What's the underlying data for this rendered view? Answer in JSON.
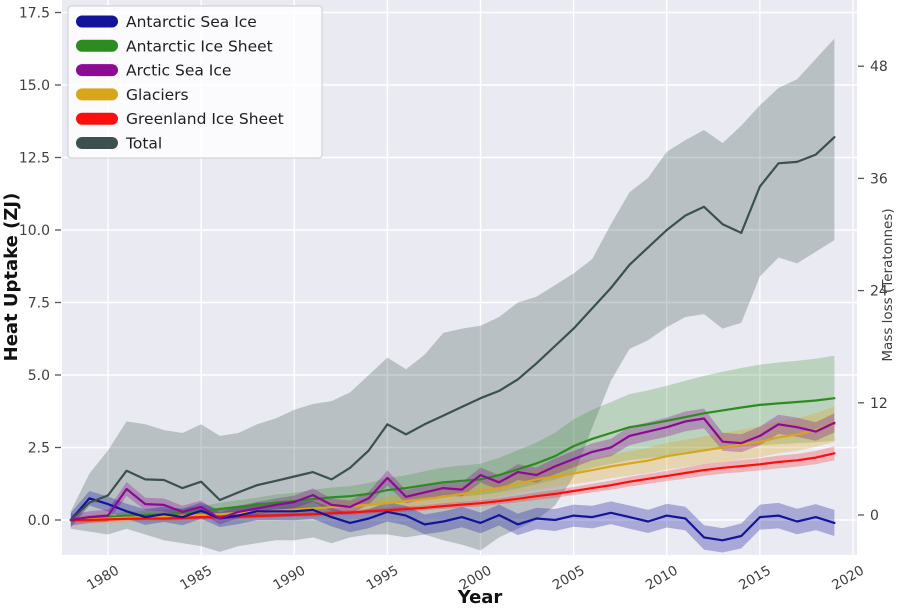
{
  "chart_data": {
    "type": "line",
    "title": "",
    "xlabel": "Year",
    "ylabel_left": "Heat Uptake (ZJ)",
    "ylabel_right": "Mass loss (Teratonnes)",
    "grid": true,
    "legend_position": "upper left",
    "plot_background": "#EAEAF2",
    "gridline_color": "#FFFFFF",
    "tick_label_color": "#3F3F3F",
    "axis_label_color": "#111111",
    "xlim": [
      1977.5,
      2020.2
    ],
    "ylim_left": [
      -1.21,
      17.93
    ],
    "ylim_right": [
      -4.3,
      55.1
    ],
    "x_tick_labels": [
      "1980",
      "1985",
      "1990",
      "1995",
      "2000",
      "2005",
      "2010",
      "2015",
      "2020"
    ],
    "x_tick_values": [
      1980,
      1985,
      1990,
      1995,
      2000,
      2005,
      2010,
      2015,
      2020
    ],
    "y_tick_labels_left": [
      "0.0",
      "2.5",
      "5.0",
      "7.5",
      "10.0",
      "12.5",
      "15.0",
      "17.5"
    ],
    "y_tick_values_left": [
      0,
      2.5,
      5,
      7.5,
      10,
      12.5,
      15,
      17.5
    ],
    "y_tick_labels_right": [
      "0",
      "12",
      "24",
      "36",
      "48"
    ],
    "y_tick_values_right": [
      0,
      12,
      24,
      36,
      48
    ],
    "x": [
      1978,
      1979,
      1980,
      1981,
      1982,
      1983,
      1984,
      1985,
      1986,
      1987,
      1988,
      1989,
      1990,
      1991,
      1992,
      1993,
      1994,
      1995,
      1996,
      1997,
      1998,
      1999,
      2000,
      2001,
      2002,
      2003,
      2004,
      2005,
      2006,
      2007,
      2008,
      2009,
      2010,
      2011,
      2012,
      2013,
      2014,
      2015,
      2016,
      2017,
      2018,
      2019
    ],
    "series": [
      {
        "name": "Antarctic Sea Ice",
        "color": "#14149B",
        "values": [
          0.0,
          0.75,
          0.55,
          0.3,
          0.1,
          0.2,
          0.1,
          0.32,
          0.05,
          0.15,
          0.3,
          0.3,
          0.3,
          0.35,
          0.1,
          -0.1,
          0.05,
          0.28,
          0.15,
          -0.15,
          -0.05,
          0.1,
          -0.1,
          0.17,
          -0.15,
          0.05,
          0.0,
          0.15,
          0.1,
          0.25,
          0.1,
          -0.05,
          0.15,
          0.05,
          -0.6,
          -0.7,
          -0.55,
          0.1,
          0.15,
          -0.05,
          0.1,
          -0.1
        ],
        "band_halfwidth": [
          0.25,
          0.25,
          0.26,
          0.26,
          0.27,
          0.27,
          0.28,
          0.28,
          0.29,
          0.29,
          0.3,
          0.3,
          0.31,
          0.31,
          0.32,
          0.32,
          0.33,
          0.33,
          0.34,
          0.34,
          0.35,
          0.35,
          0.36,
          0.36,
          0.37,
          0.37,
          0.38,
          0.38,
          0.39,
          0.39,
          0.4,
          0.4,
          0.41,
          0.41,
          0.42,
          0.42,
          0.43,
          0.43,
          0.44,
          0.44,
          0.45,
          0.45
        ],
        "band_alpha": 0.3
      },
      {
        "name": "Antarctic Ice Sheet",
        "color": "#2E8B22",
        "values": [
          0.0,
          0.05,
          0.1,
          0.15,
          0.18,
          0.2,
          0.25,
          0.3,
          0.38,
          0.45,
          0.52,
          0.6,
          0.65,
          0.72,
          0.78,
          0.82,
          0.9,
          1.03,
          1.1,
          1.2,
          1.3,
          1.35,
          1.4,
          1.55,
          1.75,
          1.95,
          2.2,
          2.55,
          2.8,
          3.0,
          3.2,
          3.3,
          3.42,
          3.55,
          3.68,
          3.78,
          3.88,
          3.97,
          4.02,
          4.07,
          4.12,
          4.2
        ],
        "band_halfwidth": [
          0.08,
          0.1,
          0.11,
          0.13,
          0.14,
          0.15,
          0.16,
          0.18,
          0.21,
          0.23,
          0.25,
          0.28,
          0.29,
          0.32,
          0.34,
          0.35,
          0.38,
          0.42,
          0.44,
          0.48,
          0.51,
          0.53,
          0.54,
          0.59,
          0.66,
          0.72,
          0.81,
          0.92,
          1.0,
          1.07,
          1.14,
          1.17,
          1.21,
          1.25,
          1.29,
          1.33,
          1.36,
          1.39,
          1.41,
          1.42,
          1.44,
          1.47
        ],
        "band_alpha": 0.25
      },
      {
        "name": "Arctic Sea Ice",
        "color": "#8B0B92",
        "values": [
          0.0,
          0.1,
          0.15,
          1.07,
          0.55,
          0.52,
          0.28,
          0.45,
          0.05,
          0.28,
          0.4,
          0.52,
          0.62,
          0.86,
          0.52,
          0.45,
          0.75,
          1.45,
          0.8,
          0.95,
          1.1,
          1.05,
          1.55,
          1.3,
          1.65,
          1.55,
          1.85,
          2.1,
          2.35,
          2.5,
          2.9,
          3.05,
          3.2,
          3.4,
          3.5,
          2.7,
          2.65,
          2.9,
          3.3,
          3.2,
          3.05,
          3.35
        ],
        "band_halfwidth": [
          0.2,
          0.2,
          0.21,
          0.24,
          0.22,
          0.22,
          0.21,
          0.22,
          0.2,
          0.21,
          0.22,
          0.22,
          0.22,
          0.23,
          0.22,
          0.22,
          0.23,
          0.26,
          0.23,
          0.24,
          0.24,
          0.24,
          0.26,
          0.25,
          0.27,
          0.26,
          0.27,
          0.28,
          0.29,
          0.3,
          0.32,
          0.32,
          0.33,
          0.34,
          0.34,
          0.31,
          0.31,
          0.32,
          0.33,
          0.33,
          0.32,
          0.33
        ],
        "band_alpha": 0.3
      },
      {
        "name": "Glaciers",
        "color": "#D9A61B",
        "values": [
          0.0,
          0.02,
          0.05,
          0.08,
          0.1,
          0.12,
          0.15,
          0.18,
          0.2,
          0.24,
          0.28,
          0.32,
          0.36,
          0.4,
          0.44,
          0.48,
          0.52,
          0.58,
          0.65,
          0.72,
          0.8,
          0.9,
          1.0,
          1.1,
          1.25,
          1.4,
          1.5,
          1.6,
          1.72,
          1.85,
          1.95,
          2.05,
          2.2,
          2.3,
          2.4,
          2.5,
          2.6,
          2.7,
          2.85,
          2.95,
          3.1,
          3.3
        ],
        "band_halfwidth": [
          0.15,
          0.15,
          0.16,
          0.16,
          0.16,
          0.17,
          0.17,
          0.18,
          0.18,
          0.18,
          0.19,
          0.19,
          0.2,
          0.21,
          0.21,
          0.22,
          0.22,
          0.23,
          0.24,
          0.25,
          0.26,
          0.28,
          0.29,
          0.3,
          0.33,
          0.35,
          0.36,
          0.37,
          0.39,
          0.41,
          0.42,
          0.44,
          0.46,
          0.47,
          0.49,
          0.5,
          0.51,
          0.53,
          0.55,
          0.56,
          0.58,
          0.61
        ],
        "band_alpha": 0.3
      },
      {
        "name": "Greenland Ice Sheet",
        "color": "#FB0F0C",
        "values": [
          0.0,
          0.0,
          0.02,
          0.04,
          0.05,
          0.05,
          0.07,
          0.1,
          0.1,
          0.12,
          0.14,
          0.16,
          0.18,
          0.2,
          0.23,
          0.26,
          0.3,
          0.33,
          0.38,
          0.42,
          0.48,
          0.53,
          0.58,
          0.65,
          0.73,
          0.82,
          0.9,
          1.0,
          1.1,
          1.2,
          1.32,
          1.42,
          1.52,
          1.62,
          1.72,
          1.8,
          1.86,
          1.92,
          2.0,
          2.06,
          2.15,
          2.3
        ],
        "band_halfwidth": [
          0.06,
          0.06,
          0.06,
          0.06,
          0.06,
          0.06,
          0.07,
          0.07,
          0.07,
          0.07,
          0.07,
          0.07,
          0.07,
          0.08,
          0.08,
          0.08,
          0.08,
          0.09,
          0.09,
          0.09,
          0.1,
          0.1,
          0.11,
          0.11,
          0.12,
          0.13,
          0.13,
          0.14,
          0.15,
          0.16,
          0.17,
          0.17,
          0.18,
          0.19,
          0.2,
          0.2,
          0.21,
          0.21,
          0.22,
          0.22,
          0.23,
          0.24
        ],
        "band_alpha": 0.25
      },
      {
        "name": "Total",
        "color": "#3A5150",
        "values": [
          0.0,
          0.6,
          0.85,
          1.7,
          1.4,
          1.38,
          1.1,
          1.32,
          0.69,
          0.95,
          1.2,
          1.35,
          1.5,
          1.65,
          1.4,
          1.8,
          2.4,
          3.3,
          2.95,
          3.3,
          3.6,
          3.9,
          4.2,
          4.45,
          4.85,
          5.4,
          6.0,
          6.6,
          7.3,
          8.0,
          8.8,
          9.4,
          10.0,
          10.5,
          10.8,
          10.2,
          9.9,
          11.5,
          12.3,
          12.35,
          12.6,
          13.2
        ],
        "band_upper": [
          0.3,
          1.6,
          2.4,
          3.4,
          3.3,
          3.1,
          3.0,
          3.3,
          2.9,
          3.0,
          3.3,
          3.5,
          3.8,
          4.0,
          4.1,
          4.4,
          5.0,
          5.6,
          5.2,
          5.7,
          6.45,
          6.6,
          6.7,
          7.0,
          7.5,
          7.7,
          8.1,
          8.5,
          9.0,
          10.2,
          11.3,
          11.8,
          12.7,
          13.1,
          13.45,
          13.0,
          13.6,
          14.3,
          14.9,
          15.2,
          15.9,
          16.6
        ],
        "band_lower": [
          -0.3,
          -0.4,
          -0.5,
          -0.3,
          -0.5,
          -0.7,
          -0.8,
          -0.9,
          -1.1,
          -0.9,
          -0.8,
          -0.7,
          -0.7,
          -0.6,
          -0.8,
          -0.6,
          -0.5,
          -0.5,
          -0.6,
          -0.5,
          -0.7,
          -0.85,
          -1.05,
          -0.6,
          -0.3,
          0.0,
          0.5,
          1.5,
          3.2,
          4.8,
          5.9,
          6.2,
          6.65,
          7.0,
          7.1,
          6.6,
          6.8,
          8.4,
          9.05,
          8.85,
          9.25,
          9.65
        ],
        "band_alpha": 0.28
      }
    ],
    "legend": [
      "Antarctic Sea Ice",
      "Antarctic Ice Sheet",
      "Arctic Sea Ice",
      "Glaciers",
      "Greenland Ice Sheet",
      "Total"
    ]
  }
}
